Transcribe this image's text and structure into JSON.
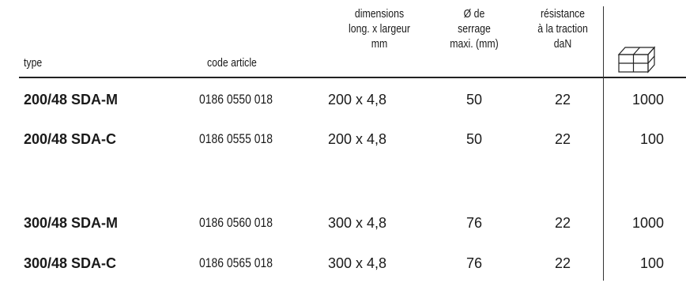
{
  "headers": {
    "type": "type",
    "code": "code article",
    "dimensions": [
      "dimensions",
      "long. x largeur",
      "mm"
    ],
    "serrage": [
      "Ø de",
      "serrage",
      "maxi. (mm)"
    ],
    "resistance": [
      "résistance",
      "à la traction",
      "daN"
    ],
    "package_icon": "box-stack-icon"
  },
  "rows": [
    {
      "type": "200/48 SDA-M",
      "code": "0186 0550 018",
      "dim": "200 x 4,8",
      "serrage": "50",
      "resistance": "22",
      "qty": "1000"
    },
    {
      "type": "200/48 SDA-C",
      "code": "0186 0555 018",
      "dim": "200 x 4,8",
      "serrage": "50",
      "resistance": "22",
      "qty": "100"
    },
    {
      "type": "300/48 SDA-M",
      "code": "0186 0560 018",
      "dim": "300 x 4,8",
      "serrage": "76",
      "resistance": "22",
      "qty": "1000"
    },
    {
      "type": "300/48 SDA-C",
      "code": "0186 0565 018",
      "dim": "300 x 4,8",
      "serrage": "76",
      "resistance": "22",
      "qty": "100"
    }
  ]
}
